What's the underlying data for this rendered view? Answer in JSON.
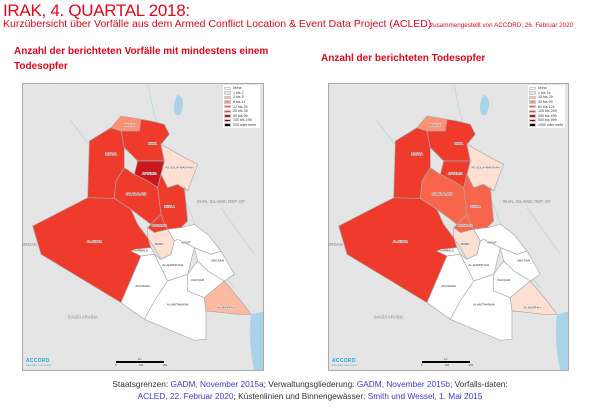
{
  "header": {
    "title": "IRAK, 4. QUARTAL 2018:",
    "subtitle": "Kurzübersicht über Vorfälle aus dem Armed Conflict Location & Event Data Project (ACLED)",
    "compiled": "zusammengestellt von ACCORD, 26. Februar 2020"
  },
  "colors": {
    "accent": "#e3051b",
    "land_outside": "#e5e5e5",
    "water": "#a9d3e6",
    "no_data": "#ffffff",
    "link": "#3b3bd6"
  },
  "palette": [
    "#ffffff",
    "#fde0d2",
    "#fcbba1",
    "#fc9272",
    "#f7654a",
    "#ee3b2c",
    "#cb181d",
    "#99000d",
    "#000000"
  ],
  "countries": [
    "IRAN, ISLAMIC REP. OF",
    "SAUDI ARABIA",
    "JORDAN"
  ],
  "regions": [
    {
      "id": "anbar",
      "label": "AL-ANBAR"
    },
    {
      "id": "ninawa",
      "label": "NINAWA"
    },
    {
      "id": "dahuk",
      "label": "DAHUK"
    },
    {
      "id": "erbil",
      "label": "ERBIL"
    },
    {
      "id": "sulay",
      "label": "AS-SULAYMANIYAH"
    },
    {
      "id": "kirkuk",
      "label": "AT-TA'MIM"
    },
    {
      "id": "salah",
      "label": "SALAH AL-DIN"
    },
    {
      "id": "diyala",
      "label": "DIYALA"
    },
    {
      "id": "baghdad",
      "label": "BAGHDAD"
    },
    {
      "id": "babil",
      "label": "BABIL"
    },
    {
      "id": "karbala",
      "label": "KARBALA"
    },
    {
      "id": "wasit",
      "label": "WASIT"
    },
    {
      "id": "qadis",
      "label": "AL-QADISIYAH"
    },
    {
      "id": "maysan",
      "label": "MAYSAN"
    },
    {
      "id": "najaf",
      "label": "AN-NAJAF"
    },
    {
      "id": "dhiqar",
      "label": "DHI QAR"
    },
    {
      "id": "muthanna",
      "label": "AL-MUTHANNA"
    },
    {
      "id": "basrah",
      "label": "AL-BASRAH"
    }
  ],
  "maps": [
    {
      "title": "Anzahl der berichteten Vorfälle mit mindestens einem Todesopfer",
      "legend": [
        "keine",
        "1 bis 2",
        "3 bis 5",
        "6 bis 11",
        "12 bis 24",
        "25 bis 49",
        "50 bis 99",
        "100 bis 199",
        "200 oder mehr"
      ],
      "classes": {
        "anbar": 5,
        "ninawa": 5,
        "dahuk": 3,
        "erbil": 5,
        "sulay": 1,
        "kirkuk": 6,
        "salah": 5,
        "diyala": 5,
        "baghdad": 5,
        "babil": 1,
        "karbala": 0,
        "wasit": 0,
        "qadis": 0,
        "maysan": 0,
        "najaf": 0,
        "dhiqar": 0,
        "muthanna": 0,
        "basrah": 2
      }
    },
    {
      "title": "Anzahl der berichteten Todesopfer",
      "legend": [
        "keine",
        "1 bis 14",
        "15 bis 29",
        "30 bis 59",
        "60 bis 124",
        "125 bis 249",
        "250 bis 499",
        "500 bis 999",
        "1000 oder mehr"
      ],
      "classes": {
        "anbar": 5,
        "ninawa": 5,
        "dahuk": 3,
        "erbil": 5,
        "sulay": 1,
        "kirkuk": 5,
        "salah": 4,
        "diyala": 4,
        "baghdad": 4,
        "babil": 1,
        "karbala": 0,
        "wasit": 0,
        "qadis": 0,
        "maysan": 0,
        "najaf": 0,
        "dhiqar": 0,
        "muthanna": 0,
        "basrah": 1
      }
    }
  ],
  "map_footer": {
    "logo": "ACCORD",
    "logo_sub": "austrian red cross",
    "scale_ticks": [
      "0",
      "100",
      "200"
    ],
    "scale_unit": "km"
  },
  "footer": {
    "p1": "Staatsgrenzen: ",
    "l1": "GADM, November 2015a",
    "p2": "; Verwaltungsgliederung: ",
    "l2": "GADM, November 2015b",
    "p3": "; Vorfalls-daten: ",
    "l3": "ACLED, 22. Februar 2020",
    "p4": "; Küstenlinien und Binnengewässer: ",
    "l4": "Smith und Wessel, 1. Mai 2015"
  }
}
